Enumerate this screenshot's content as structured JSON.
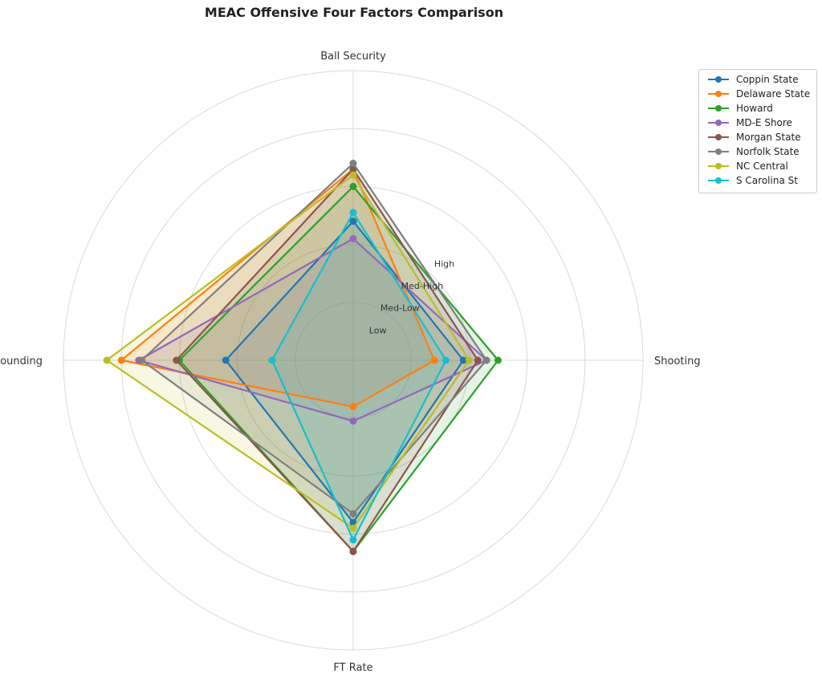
{
  "chart_data": {
    "type": "radar",
    "title": "MEAC Offensive Four Factors Comparison",
    "axes": [
      "Ball Security",
      "Shooting",
      "FT Rate",
      "Off Rebounding"
    ],
    "rlim": [
      0,
      5
    ],
    "ring_ticks": [
      1,
      2,
      3,
      4,
      5
    ],
    "ring_labels": [
      "Low",
      "Med-Low",
      "Med-High",
      "High",
      ""
    ],
    "grid": true,
    "legend_position": "top-right",
    "series": [
      {
        "name": "Coppin State",
        "color": "#1f77b4",
        "values": [
          2.4,
          1.9,
          2.8,
          2.2
        ]
      },
      {
        "name": "Delaware State",
        "color": "#ff7f0e",
        "values": [
          3.3,
          1.4,
          0.8,
          4.0
        ]
      },
      {
        "name": "Howard",
        "color": "#2ca02c",
        "values": [
          3.0,
          2.5,
          3.3,
          3.0
        ]
      },
      {
        "name": "MD-E Shore",
        "color": "#9467bd",
        "values": [
          2.1,
          2.3,
          1.05,
          3.7
        ]
      },
      {
        "name": "Morgan State",
        "color": "#8c564b",
        "values": [
          3.3,
          2.15,
          3.3,
          3.05
        ]
      },
      {
        "name": "Norfolk State",
        "color": "#7f7f7f",
        "values": [
          3.4,
          2.3,
          2.65,
          3.65
        ]
      },
      {
        "name": "NC Central",
        "color": "#bcbd22",
        "values": [
          3.2,
          2.0,
          2.9,
          4.25
        ]
      },
      {
        "name": "S Carolina St",
        "color": "#17becf",
        "values": [
          2.55,
          1.6,
          3.1,
          1.4
        ]
      }
    ]
  }
}
